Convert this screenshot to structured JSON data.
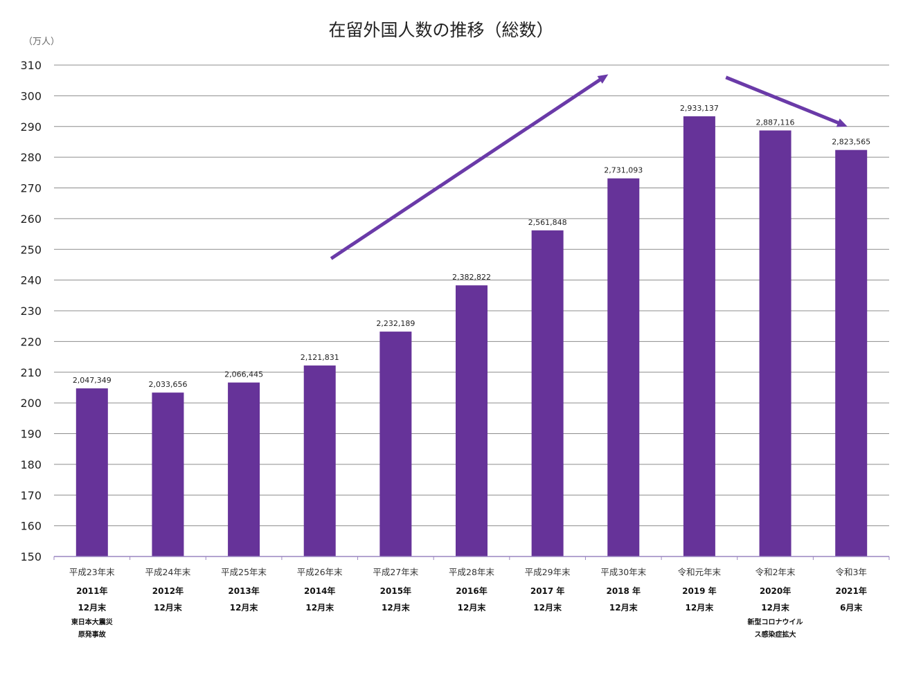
{
  "chart_data": {
    "type": "bar",
    "title": "在留外国人数の推移（総数）",
    "unit_label": "（万人）",
    "ylim": [
      150,
      310
    ],
    "yticks": [
      150,
      160,
      170,
      180,
      190,
      200,
      210,
      220,
      230,
      240,
      250,
      260,
      270,
      280,
      290,
      300,
      310
    ],
    "grid": true,
    "colors": {
      "bar": "#663399",
      "arrow": "#6a3aa8"
    },
    "categories": [
      {
        "era": "平成23年末",
        "year": "2011年",
        "month": "12月末",
        "note": [
          "東日本大震災",
          "原発事故"
        ]
      },
      {
        "era": "平成24年末",
        "year": "2012年",
        "month": "12月末",
        "note": []
      },
      {
        "era": "平成25年末",
        "year": "2013年",
        "month": "12月末",
        "note": []
      },
      {
        "era": "平成26年末",
        "year": "2014年",
        "month": "12月末",
        "note": []
      },
      {
        "era": "平成27年末",
        "year": "2015年",
        "month": "12月末",
        "note": []
      },
      {
        "era": "平成28年末",
        "year": "2016年",
        "month": "12月末",
        "note": []
      },
      {
        "era": "平成29年末",
        "year": "2017 年",
        "month": "12月末",
        "note": []
      },
      {
        "era": "平成30年末",
        "year": "2018 年",
        "month": "12月末",
        "note": []
      },
      {
        "era": "令和元年末",
        "year": "2019 年",
        "month": "12月末",
        "note": []
      },
      {
        "era": "令和2年末",
        "year": "2020年",
        "month": "12月末",
        "note": [
          "新型コロナウイル",
          "ス感染症拡大"
        ]
      },
      {
        "era": "令和3年",
        "year": "2021年",
        "month": "6月末",
        "note": []
      }
    ],
    "values": [
      204.7349,
      203.3656,
      206.6445,
      212.1831,
      223.2189,
      238.2822,
      256.1848,
      273.1093,
      293.3137,
      288.7116,
      282.3565
    ],
    "data_labels": [
      "2,047,349",
      "2,033,656",
      "2,066,445",
      "2,121,831",
      "2,232,189",
      "2,382,822",
      "2,561,848",
      "2,731,093",
      "2,933,137",
      "2,887,116",
      "2,823,565"
    ],
    "annotations": [
      {
        "type": "arrow",
        "from": {
          "category": 3.65,
          "value": 247
        },
        "to": {
          "category": 7.3,
          "value": 307
        }
      },
      {
        "type": "arrow",
        "from": {
          "category": 8.85,
          "value": 306
        },
        "to": {
          "category": 10.45,
          "value": 290
        }
      }
    ]
  }
}
